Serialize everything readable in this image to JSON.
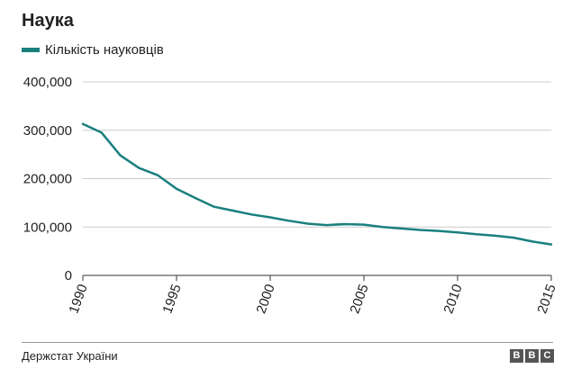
{
  "header": {
    "title": "Наука"
  },
  "footer": {
    "source": "Держстат України",
    "logo": [
      "B",
      "B",
      "C"
    ]
  },
  "colors": {
    "line": "#1a7f7f",
    "grid": "#cccccc",
    "axis": "#333333",
    "text": "#222222"
  },
  "chart_data": {
    "type": "line",
    "title": "Наука",
    "xlabel": "",
    "ylabel": "",
    "legend_position": "top-left",
    "grid": true,
    "xlim": [
      1990,
      2015
    ],
    "ylim": [
      0,
      400000
    ],
    "x_ticks": [
      1990,
      1995,
      2000,
      2005,
      2010,
      2015
    ],
    "y_ticks": [
      0,
      100000,
      200000,
      300000,
      400000
    ],
    "y_tick_labels": [
      "0",
      "100,000",
      "200,000",
      "300,000",
      "400,000"
    ],
    "series": [
      {
        "name": "Кількість науковців",
        "x": [
          1990,
          1991,
          1992,
          1993,
          1994,
          1995,
          1996,
          1997,
          1998,
          1999,
          2000,
          2001,
          2002,
          2003,
          2004,
          2005,
          2006,
          2007,
          2008,
          2009,
          2010,
          2011,
          2012,
          2013,
          2014,
          2015
        ],
        "values": [
          313000,
          295000,
          248000,
          222000,
          207000,
          179000,
          160000,
          142000,
          134000,
          126000,
          120000,
          113000,
          107000,
          104000,
          106000,
          105000,
          100000,
          97000,
          94000,
          92000,
          89000,
          85000,
          82000,
          78000,
          70000,
          64000
        ]
      }
    ]
  }
}
